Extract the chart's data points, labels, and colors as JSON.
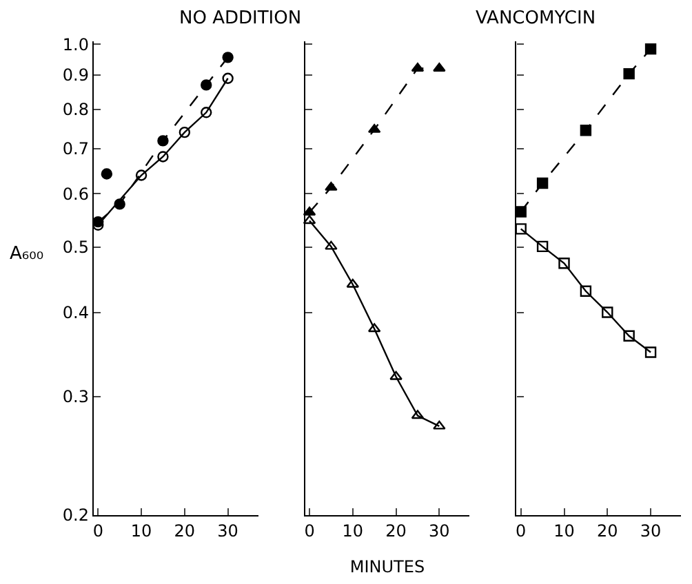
{
  "chart_data": [
    {
      "type": "line",
      "title": "NO ADDITION",
      "ylabel": "A₆₀₀",
      "log": "y",
      "xlim": [
        -1,
        37
      ],
      "xticks": [
        0,
        10,
        20,
        30
      ],
      "ylim": [
        0.2,
        1.01
      ],
      "yticks": [
        0.2,
        0.3,
        0.4,
        0.5,
        0.6,
        0.7,
        0.8,
        0.9,
        {
          "value": 1.0,
          "label": "1.0"
        }
      ],
      "grid": false,
      "series": [
        {
          "color": "#000000",
          "marker": "circle",
          "line_style": "dashed",
          "x": [
            0,
            5,
            15,
            25,
            30
          ],
          "values": [
            0.545,
            0.579,
            0.719,
            0.87,
            0.956
          ]
        },
        {
          "color": "#000000",
          "marker": "circle",
          "line_style": "solid",
          "x": [
            0,
            10,
            15,
            20,
            25,
            30
          ],
          "values": [
            0.539,
            0.639,
            0.681,
            0.74,
            0.792,
            0.89
          ]
        },
        {
          "type": "scatter",
          "color": "#000000",
          "marker": "circle",
          "x": [
            2
          ],
          "values": [
            0.642
          ]
        }
      ]
    },
    {
      "type": "line",
      "xlabel": "MINUTES",
      "log": "y",
      "xlim": [
        -1,
        37
      ],
      "xticks": [
        0,
        10,
        20,
        30
      ],
      "ylim": [
        0.2,
        1.01
      ],
      "yticks": [
        0.2,
        0.3,
        0.4,
        0.5,
        0.6,
        0.7,
        0.8,
        0.9,
        1.0
      ],
      "tick_labels": "x",
      "grid": false,
      "series": [
        {
          "color": "#000000",
          "marker": "triangle",
          "line_style": "dashed",
          "x": [
            0,
            5,
            15,
            25,
            30
          ],
          "values": [
            0.563,
            0.613,
            0.747,
            0.921,
            0.921
          ]
        },
        {
          "color": "#000000",
          "marker": "triangle",
          "line_style": "solid",
          "x": [
            0,
            5,
            10,
            15,
            20,
            25,
            30
          ],
          "values": [
            0.547,
            0.501,
            0.44,
            0.378,
            0.321,
            0.281,
            0.271
          ]
        }
      ]
    },
    {
      "type": "line",
      "title": "VANCOMYCIN",
      "log": "y",
      "xlim": [
        -1,
        37
      ],
      "xticks": [
        0,
        10,
        20,
        30
      ],
      "ylim": [
        0.2,
        1.01
      ],
      "yticks": [
        0.2,
        0.3,
        0.4,
        0.5,
        0.6,
        0.7,
        0.8,
        0.9,
        1.0
      ],
      "tick_labels": "x",
      "grid": false,
      "series": [
        {
          "color": "#000000",
          "marker": "square",
          "line_style": "dashed",
          "x": [
            0,
            5,
            15,
            25,
            30
          ],
          "values": [
            0.564,
            0.622,
            0.745,
            0.904,
            0.984
          ]
        },
        {
          "color": "#000000",
          "marker": "square",
          "line_style": "solid",
          "x": [
            0,
            5,
            10,
            15,
            20,
            25,
            30
          ],
          "values": [
            0.532,
            0.501,
            0.473,
            0.43,
            0.4,
            0.369,
            0.349
          ]
        }
      ]
    }
  ]
}
